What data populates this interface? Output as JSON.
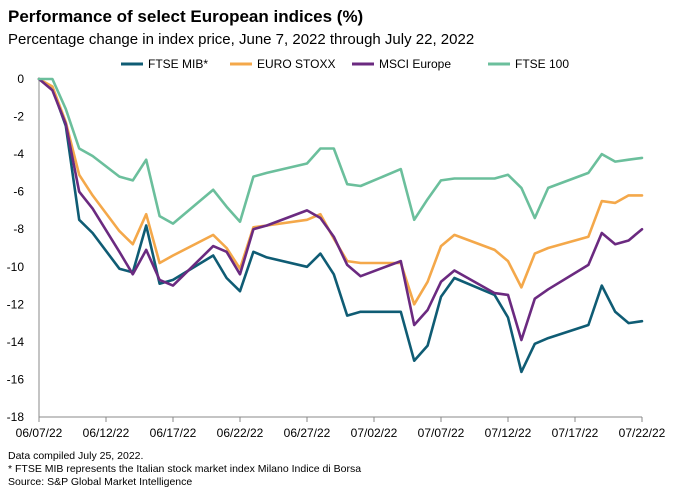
{
  "chart_data": {
    "type": "line",
    "title": "Performance of select European indices (%)",
    "subtitle": "Percentage change in index price, June 7, 2022 through July 22, 2022",
    "xlabel": "",
    "ylabel": "",
    "ylim": [
      -18,
      0
    ],
    "yticks": [
      0,
      -2,
      -4,
      -6,
      -8,
      -10,
      -12,
      -14,
      -16,
      -18
    ],
    "x_tick_labels": [
      "06/07/22",
      "06/12/22",
      "06/17/22",
      "06/22/22",
      "06/27/22",
      "07/02/22",
      "07/07/22",
      "07/12/22",
      "07/17/22",
      "07/22/22"
    ],
    "x_range": [
      0,
      45
    ],
    "x_tick_days": [
      0,
      5,
      10,
      15,
      20,
      25,
      30,
      35,
      40,
      45
    ],
    "series": [
      {
        "name": "FTSE MIB*",
        "color": "#0f5c74",
        "days": [
          0,
          1,
          2,
          3,
          4,
          6,
          7,
          8,
          9,
          10,
          13,
          14,
          15,
          16,
          17,
          20,
          21,
          22,
          23,
          24,
          27,
          28,
          29,
          30,
          31,
          34,
          35,
          36,
          37,
          38,
          41,
          42,
          43,
          44,
          45
        ],
        "values": [
          0,
          -0.5,
          -2.5,
          -7.5,
          -8.2,
          -10.1,
          -10.3,
          -7.8,
          -10.9,
          -10.7,
          -9.4,
          -10.6,
          -11.3,
          -9.2,
          -9.5,
          -10.0,
          -9.3,
          -10.4,
          -12.6,
          -12.4,
          -12.4,
          -15.0,
          -14.2,
          -11.6,
          -10.6,
          -11.5,
          -12.7,
          -15.6,
          -14.1,
          -13.8,
          -13.1,
          -11.0,
          -12.4,
          -13.0,
          -12.9
        ]
      },
      {
        "name": "EURO STOXX",
        "color": "#f4a84a",
        "days": [
          0,
          1,
          2,
          3,
          4,
          6,
          7,
          8,
          9,
          10,
          13,
          14,
          15,
          16,
          17,
          20,
          21,
          22,
          23,
          24,
          27,
          28,
          29,
          30,
          31,
          34,
          35,
          36,
          37,
          38,
          41,
          42,
          43,
          44,
          45
        ],
        "values": [
          0,
          -0.4,
          -2.3,
          -5.1,
          -6.2,
          -8.1,
          -8.8,
          -7.2,
          -9.8,
          -9.4,
          -8.3,
          -9.0,
          -10.1,
          -7.9,
          -7.8,
          -7.5,
          -7.2,
          -8.5,
          -9.7,
          -9.8,
          -9.8,
          -12.0,
          -10.8,
          -8.9,
          -8.3,
          -9.1,
          -9.7,
          -11.1,
          -9.3,
          -9.0,
          -8.4,
          -6.5,
          -6.6,
          -6.2,
          -6.2
        ]
      },
      {
        "name": "MSCI Europe",
        "color": "#6b2a80",
        "days": [
          0,
          1,
          2,
          3,
          4,
          6,
          7,
          8,
          9,
          10,
          13,
          14,
          15,
          16,
          17,
          20,
          21,
          22,
          23,
          24,
          27,
          28,
          29,
          30,
          31,
          34,
          35,
          36,
          37,
          38,
          41,
          42,
          43,
          44,
          45
        ],
        "values": [
          0,
          -0.6,
          -2.4,
          -6.0,
          -6.9,
          -9.2,
          -10.4,
          -9.1,
          -10.7,
          -11.0,
          -8.9,
          -9.2,
          -10.4,
          -8.0,
          -7.8,
          -7.0,
          -7.4,
          -8.4,
          -9.9,
          -10.5,
          -9.7,
          -13.1,
          -12.3,
          -10.8,
          -10.2,
          -11.4,
          -11.5,
          -13.9,
          -11.7,
          -11.2,
          -9.9,
          -8.2,
          -8.8,
          -8.6,
          -8.0
        ]
      },
      {
        "name": "FTSE 100",
        "color": "#6bbf9c",
        "days": [
          0,
          1,
          2,
          3,
          4,
          6,
          7,
          8,
          9,
          10,
          13,
          14,
          15,
          16,
          17,
          20,
          21,
          22,
          23,
          24,
          27,
          28,
          29,
          30,
          31,
          34,
          35,
          36,
          37,
          38,
          41,
          42,
          43,
          44,
          45
        ],
        "values": [
          0,
          0,
          -1.6,
          -3.7,
          -4.1,
          -5.2,
          -5.4,
          -4.3,
          -7.3,
          -7.7,
          -5.9,
          -6.8,
          -7.6,
          -5.2,
          -5.0,
          -4.5,
          -3.7,
          -3.7,
          -5.6,
          -5.7,
          -4.8,
          -7.5,
          -6.4,
          -5.4,
          -5.3,
          -5.3,
          -5.1,
          -5.8,
          -7.4,
          -5.8,
          -5.0,
          -4.0,
          -4.4,
          -4.3,
          -4.2
        ]
      }
    ]
  },
  "footnotes": {
    "compiled": "Data compiled July 25, 2022.",
    "footnote": "* FTSE MIB represents the Italian stock market index Milano Indice di Borsa",
    "source": "Source: S&P Global Market Intelligence"
  }
}
